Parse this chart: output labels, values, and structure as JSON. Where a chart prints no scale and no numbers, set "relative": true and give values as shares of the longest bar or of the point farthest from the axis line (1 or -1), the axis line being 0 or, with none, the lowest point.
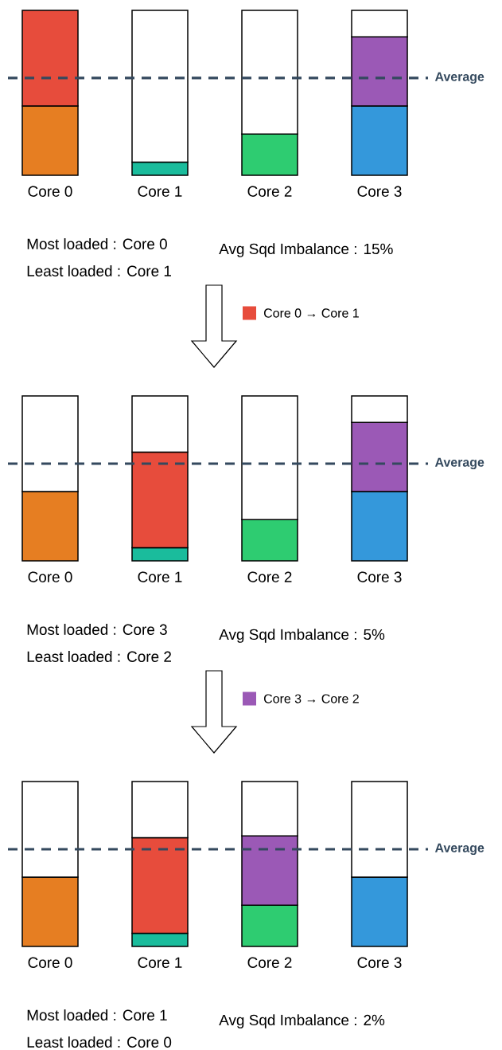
{
  "chart_data": [
    {
      "type": "bar",
      "stacked": true,
      "relative": true,
      "categories": [
        "Core 0",
        "Core 1",
        "Core 2",
        "Core 3"
      ],
      "series": [
        {
          "color": "#e67e22",
          "values": [
            0.42,
            null,
            null,
            null
          ]
        },
        {
          "color": "#1abc9c",
          "values": [
            null,
            0.08,
            null,
            null
          ]
        },
        {
          "color": "#2ecc71",
          "values": [
            null,
            null,
            0.25,
            null
          ]
        },
        {
          "color": "#3498db",
          "values": [
            null,
            null,
            null,
            0.42
          ]
        },
        {
          "color": "#e74c3c",
          "values": [
            0.58,
            null,
            null,
            null
          ]
        },
        {
          "color": "#9b59b6",
          "values": [
            null,
            null,
            null,
            0.42
          ]
        },
        {
          "color": "#ffffff",
          "values": [
            null,
            0.92,
            0.75,
            0.16
          ]
        }
      ],
      "ref_lines": [
        {
          "axis": "y",
          "value": 0.59,
          "label": "Average",
          "color": "#34495e",
          "line_style": "dashed"
        }
      ],
      "annotations": [
        "Most  loaded : Core 0",
        "Least loaded : Core 1",
        "Avg Sqd Imbalance : 15%",
        "Core 0 → Core 1"
      ]
    },
    {
      "type": "bar",
      "stacked": true,
      "relative": true,
      "categories": [
        "Core 0",
        "Core 1",
        "Core 2",
        "Core 3"
      ],
      "series": [
        {
          "color": "#e67e22",
          "values": [
            0.42,
            null,
            null,
            null
          ]
        },
        {
          "color": "#1abc9c",
          "values": [
            null,
            0.08,
            null,
            null
          ]
        },
        {
          "color": "#2ecc71",
          "values": [
            null,
            null,
            0.25,
            null
          ]
        },
        {
          "color": "#3498db",
          "values": [
            null,
            null,
            null,
            0.42
          ]
        },
        {
          "color": "#e74c3c",
          "values": [
            null,
            0.58,
            null,
            null
          ]
        },
        {
          "color": "#9b59b6",
          "values": [
            null,
            null,
            null,
            0.42
          ]
        },
        {
          "color": "#ffffff",
          "values": [
            0.58,
            0.34,
            0.75,
            0.16
          ]
        }
      ],
      "ref_lines": [
        {
          "axis": "y",
          "value": 0.59,
          "label": "Average",
          "color": "#34495e",
          "line_style": "dashed"
        }
      ],
      "annotations": [
        "Most  loaded : Core 3",
        "Least loaded : Core 2",
        "Avg Sqd Imbalance : 5%",
        "Core 3 → Core 2"
      ]
    },
    {
      "type": "bar",
      "stacked": true,
      "relative": true,
      "categories": [
        "Core 0",
        "Core 1",
        "Core 2",
        "Core 3"
      ],
      "series": [
        {
          "color": "#e67e22",
          "values": [
            0.42,
            null,
            null,
            null
          ]
        },
        {
          "color": "#1abc9c",
          "values": [
            null,
            0.08,
            null,
            null
          ]
        },
        {
          "color": "#2ecc71",
          "values": [
            null,
            null,
            0.25,
            null
          ]
        },
        {
          "color": "#3498db",
          "values": [
            null,
            null,
            null,
            0.42
          ]
        },
        {
          "color": "#e74c3c",
          "values": [
            null,
            0.58,
            null,
            null
          ]
        },
        {
          "color": "#9b59b6",
          "values": [
            null,
            null,
            0.42,
            null
          ]
        },
        {
          "color": "#ffffff",
          "values": [
            0.58,
            0.34,
            0.33,
            0.58
          ]
        }
      ],
      "ref_lines": [
        {
          "axis": "y",
          "value": 0.59,
          "label": "Average",
          "color": "#34495e",
          "line_style": "dashed"
        }
      ],
      "annotations": [
        "Most  loaded : Core 1",
        "Least loaded : Core 0",
        "Avg Sqd Imbalance : 2%"
      ]
    }
  ]
}
